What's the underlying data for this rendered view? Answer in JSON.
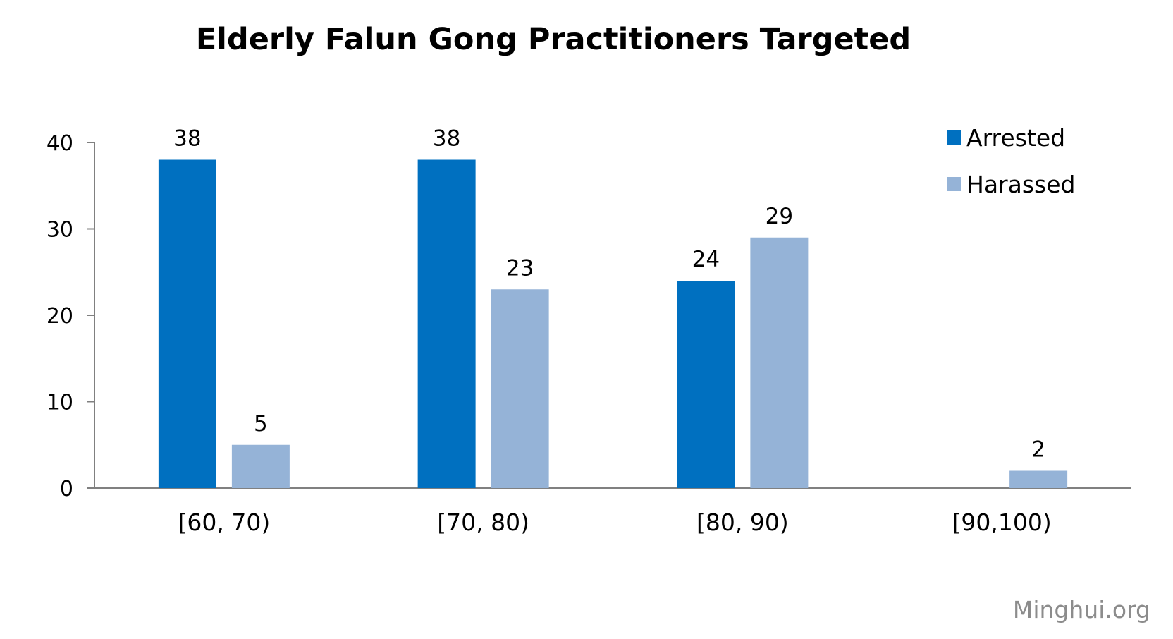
{
  "chart_data": {
    "type": "bar",
    "title": "Elderly Falun Gong Practitioners Targeted",
    "categories": [
      "[60, 70)",
      "[70, 80)",
      "[80, 90)",
      "[90,100)"
    ],
    "series": [
      {
        "name": "Arrested",
        "values": [
          38,
          38,
          24,
          null
        ],
        "color": "#0070C0"
      },
      {
        "name": "Harassed",
        "values": [
          5,
          23,
          29,
          2
        ],
        "color": "#95B3D7"
      }
    ],
    "ylim": [
      0,
      40
    ],
    "yticks": [
      0,
      10,
      20,
      30,
      40
    ],
    "xlabel": "",
    "ylabel": "",
    "grid": false,
    "legend": "top-right",
    "axis_color": "#808080"
  },
  "watermark": "Minghui.org"
}
